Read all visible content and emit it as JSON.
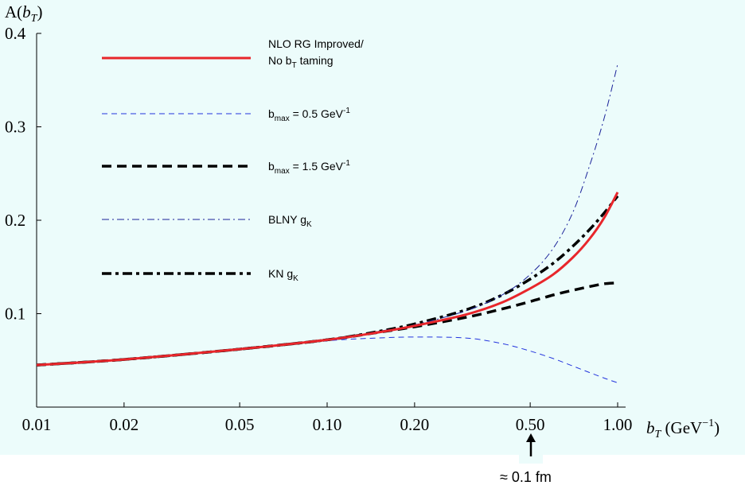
{
  "chart_data": {
    "type": "line",
    "ylabel": "A(b_T)",
    "xlabel": "b_T (GeV^-1)",
    "xscale": "log",
    "xlim": [
      0.01,
      1.0
    ],
    "ylim": [
      0.0,
      0.4
    ],
    "x_ticks": [
      "0.01",
      "0.02",
      "0.05",
      "0.10",
      "0.20",
      "0.50",
      "1.00"
    ],
    "x_tick_values": [
      0.01,
      0.02,
      0.05,
      0.1,
      0.2,
      0.5,
      1.0
    ],
    "y_ticks": [
      "0.1",
      "0.2",
      "0.3",
      "0.4"
    ],
    "y_tick_values": [
      0.1,
      0.2,
      0.3,
      0.4
    ],
    "x": [
      0.01,
      0.02,
      0.05,
      0.1,
      0.15,
      0.2,
      0.3,
      0.4,
      0.5,
      0.6,
      0.7,
      0.8,
      0.9,
      1.0
    ],
    "series": [
      {
        "name": "NLO RG Improved/ No b_T taming",
        "color": "#e8262b",
        "style": "solid",
        "values": [
          0.045,
          0.051,
          0.062,
          0.072,
          0.08,
          0.087,
          0.099,
          0.112,
          0.127,
          0.142,
          0.16,
          0.18,
          0.203,
          0.23
        ]
      },
      {
        "name": "b_max = 0.5 GeV^-1",
        "color": "#2233dd",
        "style": "thin-dashed",
        "values": [
          0.045,
          0.051,
          0.062,
          0.071,
          0.074,
          0.075,
          0.074,
          0.068,
          0.06,
          0.052,
          0.044,
          0.037,
          0.031,
          0.026
        ]
      },
      {
        "name": "b_max = 1.5 GeV^-1",
        "color": "#000000",
        "style": "thick-dashed",
        "values": [
          0.045,
          0.051,
          0.062,
          0.072,
          0.08,
          0.086,
          0.096,
          0.105,
          0.113,
          0.12,
          0.125,
          0.129,
          0.132,
          0.133
        ]
      },
      {
        "name": "BLNY g_K",
        "color": "#1a2299",
        "style": "thin-dashdot",
        "values": [
          0.045,
          0.051,
          0.062,
          0.072,
          0.081,
          0.088,
          0.103,
          0.12,
          0.142,
          0.17,
          0.208,
          0.258,
          0.31,
          0.367
        ]
      },
      {
        "name": "KN g_K",
        "color": "#000000",
        "style": "thick-dashdot",
        "values": [
          0.045,
          0.051,
          0.062,
          0.072,
          0.081,
          0.089,
          0.104,
          0.12,
          0.137,
          0.154,
          0.172,
          0.19,
          0.208,
          0.226
        ]
      }
    ],
    "annotation": "≈ 0.1 fm",
    "annotation_arrow_at_x": 0.5
  },
  "legend": {
    "nlo_line1": "NLO RG Improved/",
    "nlo_line2": "No b",
    "nlo_line2_sub": "T",
    "nlo_line2_tail": " taming",
    "bmax05_base": "b",
    "bmax05_sub": "max",
    "bmax05_mid": " = 0.5 GeV",
    "bmax05_sup": "-1",
    "bmax15_base": "b",
    "bmax15_sub": "max",
    "bmax15_mid": " = 1.5 GeV",
    "bmax15_sup": "-1",
    "blny_base": "BLNY g",
    "blny_sub": "K",
    "kn_base": "KN g",
    "kn_sub": "K"
  },
  "axes": {
    "ylabel_prefix": "A(",
    "ylabel_var": "b",
    "ylabel_sub": "T",
    "ylabel_suffix": ")",
    "xlabel_var": "b",
    "xlabel_sub": "T",
    "xlabel_unit": " (GeV",
    "xlabel_sup": "−1",
    "xlabel_close": ")"
  }
}
